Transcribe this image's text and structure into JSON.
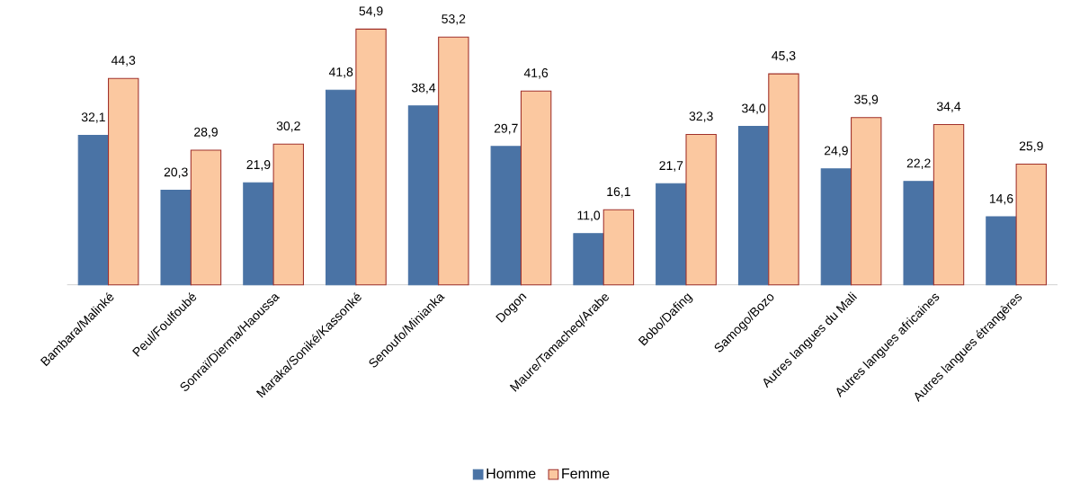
{
  "chart_data": {
    "type": "bar",
    "categories": [
      "Bambara/Malinké",
      "Peul/Foulfoubé",
      "Sonraï/Dierma/Haoussa",
      "Maraka/Soniké/Kassonké",
      "Senoufo/Minianka",
      "Dogon",
      "Maure/Tamacheq/Arabe",
      "Bobo/Dafing",
      "Samogo/Bozo",
      "Autres langues du Mali",
      "Autres langues africaines",
      "Autres langues étrangères"
    ],
    "series": [
      {
        "name": "Homme",
        "color": "#4a73a5",
        "values": [
          32.1,
          20.3,
          21.9,
          41.8,
          38.4,
          29.7,
          11.0,
          21.7,
          34.0,
          24.9,
          22.2,
          14.6
        ],
        "value_labels": [
          "32,1",
          "20,3",
          "21,9",
          "41,8",
          "38,4",
          "29,7",
          "11,0",
          "21,7",
          "34,0",
          "24,9",
          "22,2",
          "14,6"
        ]
      },
      {
        "name": "Femme",
        "color": "#fbc8a0",
        "values": [
          44.3,
          28.9,
          30.2,
          54.9,
          53.2,
          41.6,
          16.1,
          32.3,
          45.3,
          35.9,
          34.4,
          25.9
        ],
        "value_labels": [
          "44,3",
          "28,9",
          "30,2",
          "54,9",
          "53,2",
          "41,6",
          "16,1",
          "32,3",
          "45,3",
          "35,9",
          "34,4",
          "25,9"
        ]
      }
    ],
    "legend": "bottom"
  }
}
